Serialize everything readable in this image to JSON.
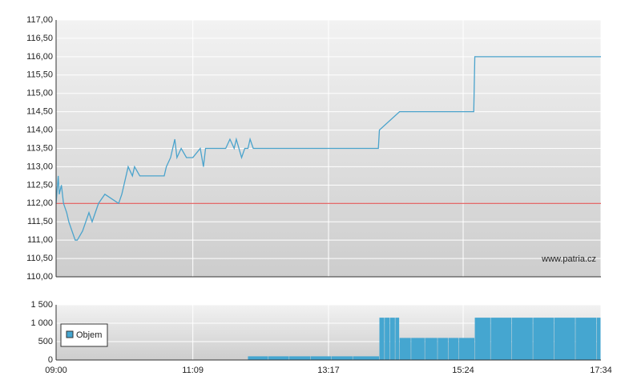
{
  "chart_data": [
    {
      "type": "line",
      "watermark": "www.patria.cz",
      "color": "#4aa3cc",
      "reference_line": 112,
      "reference_color": "#e04040",
      "x": [
        "09:00",
        "09:02",
        "09:03",
        "09:05",
        "09:07",
        "09:10",
        "09:12",
        "09:15",
        "09:18",
        "09:20",
        "09:25",
        "09:28",
        "09:31",
        "09:34",
        "09:37",
        "09:40",
        "09:46",
        "09:59",
        "10:02",
        "10:04",
        "10:08",
        "10:12",
        "10:14",
        "10:19",
        "10:21",
        "10:42",
        "10:44",
        "10:48",
        "10:50",
        "10:52",
        "10:54",
        "10:58",
        "11:03",
        "11:09",
        "11:16",
        "11:19",
        "11:21",
        "11:25",
        "11:40",
        "11:44",
        "11:48",
        "11:50",
        "11:55",
        "11:58",
        "12:01",
        "12:03",
        "12:06",
        "12:08",
        "14:04",
        "14:05",
        "14:24",
        "15:34",
        "15:35",
        "17:34"
      ],
      "values": [
        112,
        112.75,
        112.25,
        112.5,
        112,
        111.75,
        111.5,
        111.25,
        111,
        111,
        111.25,
        111.5,
        111.75,
        111.5,
        111.75,
        112,
        112.25,
        112,
        112.25,
        112.5,
        113,
        112.75,
        113,
        112.75,
        112.75,
        112.75,
        113,
        113.25,
        113.5,
        113.75,
        113.25,
        113.5,
        113.25,
        113.25,
        113.5,
        113,
        113.5,
        113.5,
        113.5,
        113.75,
        113.5,
        113.75,
        113.25,
        113.5,
        113.5,
        113.75,
        113.5,
        113.5,
        113.5,
        114,
        114.5,
        114.5,
        116,
        116
      ],
      "xlim": [
        "09:00",
        "17:34"
      ],
      "ylim": [
        110,
        117
      ],
      "yticks": [
        {
          "value": 110,
          "label": "110,00"
        },
        {
          "value": 110.5,
          "label": "110,50"
        },
        {
          "value": 111,
          "label": "111,00"
        },
        {
          "value": 111.5,
          "label": "111,50"
        },
        {
          "value": 112,
          "label": "112,00"
        },
        {
          "value": 112.5,
          "label": "112,50"
        },
        {
          "value": 113,
          "label": "113,00"
        },
        {
          "value": 113.5,
          "label": "113,50"
        },
        {
          "value": 114,
          "label": "114,00"
        },
        {
          "value": 114.5,
          "label": "114,50"
        },
        {
          "value": 115,
          "label": "115,00"
        },
        {
          "value": 115.5,
          "label": "115,50"
        },
        {
          "value": 116,
          "label": "116,00"
        },
        {
          "value": 116.5,
          "label": "116,50"
        },
        {
          "value": 117,
          "label": "117,00"
        }
      ],
      "grid": true
    },
    {
      "type": "bar",
      "x": [
        "12:01",
        "12:20",
        "12:40",
        "13:00",
        "13:20",
        "13:40",
        "14:05",
        "14:10",
        "14:15",
        "14:20",
        "14:24",
        "14:35",
        "14:48",
        "15:00",
        "15:10",
        "15:20",
        "15:35",
        "15:50",
        "16:10",
        "16:30",
        "16:50",
        "17:10",
        "17:30"
      ],
      "series": [
        {
          "name": "Objem",
          "color": "#45a6d0",
          "values": [
            100,
            100,
            100,
            100,
            100,
            100,
            1150,
            1150,
            1150,
            1150,
            600,
            600,
            600,
            600,
            600,
            600,
            1150,
            1150,
            1150,
            1150,
            1150,
            1150,
            1150
          ]
        }
      ],
      "xlim": [
        "09:00",
        "17:34"
      ],
      "xticks": [
        "09:00",
        "11:09",
        "13:17",
        "15:24",
        "17:34"
      ],
      "ylim": [
        0,
        1500
      ],
      "yticks": [
        0,
        500,
        {
          "value": 1000,
          "label": "1 000"
        },
        {
          "value": 1500,
          "label": "1 500"
        }
      ],
      "grid": true
    }
  ]
}
